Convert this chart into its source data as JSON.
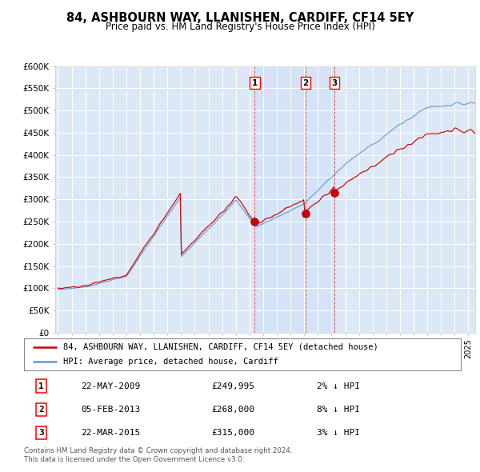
{
  "title": "84, ASHBOURN WAY, LLANISHEN, CARDIFF, CF14 5EY",
  "subtitle": "Price paid vs. HM Land Registry's House Price Index (HPI)",
  "ylim": [
    0,
    600000
  ],
  "yticks": [
    0,
    50000,
    100000,
    150000,
    200000,
    250000,
    300000,
    350000,
    400000,
    450000,
    500000,
    550000,
    600000
  ],
  "ytick_labels": [
    "£0",
    "£50K",
    "£100K",
    "£150K",
    "£200K",
    "£250K",
    "£300K",
    "£350K",
    "£400K",
    "£450K",
    "£500K",
    "£550K",
    "£600K"
  ],
  "sale_dates_num": [
    2009.38,
    2013.09,
    2015.22
  ],
  "sale_prices": [
    249995,
    268000,
    315000
  ],
  "sale_labels": [
    "1",
    "2",
    "3"
  ],
  "sale_date_str": [
    "22-MAY-2009",
    "05-FEB-2013",
    "22-MAR-2015"
  ],
  "sale_price_str": [
    "£249,995",
    "£268,000",
    "£315,000"
  ],
  "sale_hpi_str": [
    "2% ↓ HPI",
    "8% ↓ HPI",
    "3% ↓ HPI"
  ],
  "red_line_color": "#cc0000",
  "blue_line_color": "#6699cc",
  "bg_color": "#dce8f5",
  "legend_label_red": "84, ASHBOURN WAY, LLANISHEN, CARDIFF, CF14 5EY (detached house)",
  "legend_label_blue": "HPI: Average price, detached house, Cardiff",
  "footer": "Contains HM Land Registry data © Crown copyright and database right 2024.\nThis data is licensed under the Open Government Licence v3.0.",
  "xmin": 1994.8,
  "xmax": 2025.5
}
